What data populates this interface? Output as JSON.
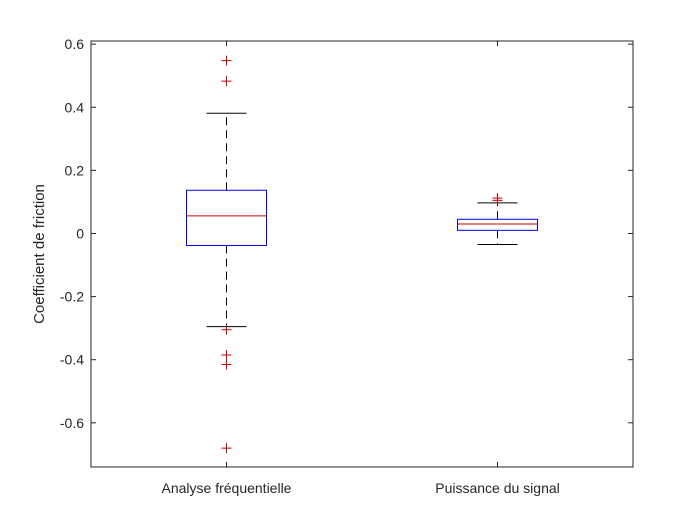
{
  "chart_data": {
    "type": "box",
    "title": "",
    "xlabel": "",
    "ylabel": "Coefficient de friction",
    "ylim": [
      -0.74,
      0.61
    ],
    "yticks": [
      -0.6,
      -0.4,
      -0.2,
      0,
      0.2,
      0.4,
      0.6
    ],
    "ytick_labels": [
      "-0.6",
      "-0.4",
      "-0.2",
      "0",
      "0.2",
      "0.4",
      "0.6"
    ],
    "grid": false,
    "legend": "none",
    "colors": {
      "box": "#0000ff",
      "median": "#cc0000",
      "whisker": "#000000",
      "outlier": "#cc0000",
      "axes": "#262626"
    },
    "categories": [
      "Analyse fréquentielle",
      "Puissance du signal"
    ],
    "boxes": [
      {
        "category": "Analyse fréquentielle",
        "q1": -0.038,
        "median": 0.056,
        "q3": 0.137,
        "whisker_low": -0.295,
        "whisker_high": 0.381,
        "outliers": [
          0.548,
          0.483,
          -0.305,
          -0.385,
          -0.415,
          -0.68
        ]
      },
      {
        "category": "Puissance du signal",
        "q1": 0.01,
        "median": 0.03,
        "q3": 0.045,
        "whisker_low": -0.035,
        "whisker_high": 0.097,
        "outliers": [
          0.112,
          0.105
        ]
      }
    ]
  }
}
